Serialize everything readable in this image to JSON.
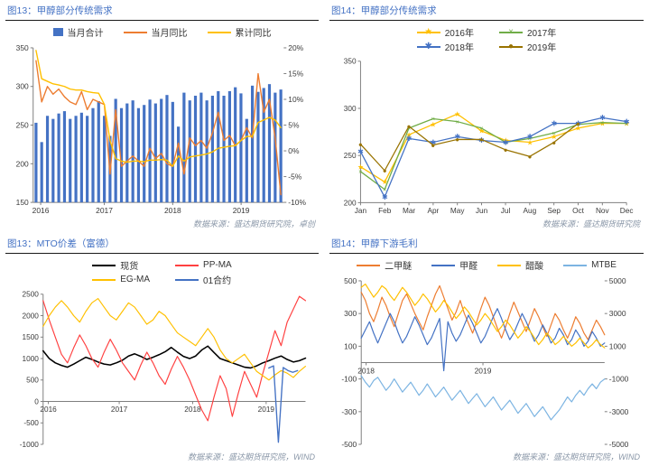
{
  "chart_data": [
    {
      "type": "bar",
      "title": "图13：甲醇部分传统需求",
      "source": "数据来源：盛达期货研究院，卓创",
      "legend_position": "top",
      "legend_columns": 1,
      "grid": false,
      "centered": true,
      "left_axis": {
        "min": 150,
        "max": 350,
        "ticks": [
          350,
          300,
          250,
          200,
          150
        ]
      },
      "right_axis": {
        "min": -10,
        "max": 20,
        "ticks": [
          20,
          15,
          10,
          5,
          0,
          -5,
          -10
        ],
        "suffix": "%"
      },
      "x_labels": [
        {
          "text": "2016",
          "pos": 0.03
        },
        {
          "text": "2017",
          "pos": 0.284
        },
        {
          "text": "2018",
          "pos": 0.557
        },
        {
          "text": "2019",
          "pos": 0.83
        }
      ],
      "series": [
        {
          "name": "当月合计",
          "type": "bar",
          "axis": "left",
          "color": "#4472C4",
          "values": [
            253,
            228,
            262,
            258,
            265,
            268,
            258,
            262,
            266,
            262,
            272,
            281,
            262,
            236,
            284,
            272,
            278,
            282,
            272,
            276,
            283,
            278,
            284,
            289,
            280,
            248,
            292,
            282,
            288,
            292,
            282,
            288,
            294,
            288,
            294,
            299,
            291,
            258,
            301,
            293,
            298,
            303,
            292,
            296
          ]
        },
        {
          "name": "当月同比",
          "type": "line",
          "axis": "right",
          "color": "#ED7D31",
          "width": 1.4,
          "values": [
            17.5,
            9.5,
            12.5,
            11,
            12,
            10.5,
            9.5,
            9,
            11.5,
            8,
            10,
            9.5,
            9,
            -4.5,
            8,
            -3,
            -2,
            -1,
            -2,
            -3,
            0.5,
            -1.5,
            -0.5,
            -2.5,
            -3,
            1.5,
            -4.5,
            2.5,
            1,
            2,
            0.5,
            3.5,
            7.5,
            2,
            3,
            1,
            2,
            4.5,
            2.5,
            15,
            7.5,
            10,
            2.5,
            -8.5
          ]
        },
        {
          "name": "累计同比",
          "type": "line",
          "axis": "right",
          "color": "#FFC000",
          "width": 1.4,
          "values": [
            19.5,
            14,
            13.5,
            13,
            12.8,
            12.5,
            12,
            11.8,
            11.8,
            11.5,
            11.3,
            11.2,
            9,
            2,
            -1.5,
            -2,
            -2.2,
            -2,
            -2,
            -2.1,
            -1.8,
            -1.8,
            -1.7,
            -1.8,
            -3,
            -1,
            -2,
            -1.2,
            -1,
            -0.8,
            -0.6,
            -0.2,
            0.5,
            0.7,
            0.9,
            1,
            2,
            2.8,
            2.8,
            5.5,
            6,
            6.5,
            6,
            4.5
          ]
        }
      ]
    },
    {
      "type": "line",
      "title": "图14：甲醇部分传统需求",
      "source": "数据来源：盛达期货研究院",
      "legend_position": "top",
      "legend_columns": 2,
      "grid": false,
      "centered": false,
      "left_axis": {
        "min": 200,
        "max": 350,
        "ticks": [
          350,
          300,
          250,
          200
        ]
      },
      "x_labels": [
        {
          "text": "Jan",
          "pos": 0
        },
        {
          "text": "Feb",
          "pos": 0.091
        },
        {
          "text": "Mar",
          "pos": 0.182
        },
        {
          "text": "Apr",
          "pos": 0.273
        },
        {
          "text": "May",
          "pos": 0.364
        },
        {
          "text": "Jun",
          "pos": 0.455
        },
        {
          "text": "Jul",
          "pos": 0.545
        },
        {
          "text": "Aug",
          "pos": 0.636
        },
        {
          "text": "Sep",
          "pos": 0.727
        },
        {
          "text": "Oct",
          "pos": 0.818
        },
        {
          "text": "Nov",
          "pos": 0.909
        },
        {
          "text": "Dec",
          "pos": 1
        }
      ],
      "series": [
        {
          "name": "2016年",
          "type": "line",
          "axis": "left",
          "color": "#FFC000",
          "marker": "★",
          "values": [
            238,
            222,
            272,
            283,
            294,
            276,
            266,
            264,
            270,
            279,
            284,
            284
          ]
        },
        {
          "name": "2017年",
          "type": "line",
          "axis": "left",
          "color": "#70AD47",
          "marker": "×",
          "values": [
            233,
            214,
            279,
            289,
            286,
            279,
            264,
            268,
            274,
            283,
            285,
            284
          ]
        },
        {
          "name": "2018年",
          "type": "line",
          "axis": "left",
          "color": "#4472C4",
          "marker": "✱",
          "values": [
            254,
            206,
            268,
            264,
            270,
            266,
            264,
            270,
            284,
            284,
            290,
            286
          ]
        },
        {
          "name": "2019年",
          "type": "line",
          "axis": "left",
          "color": "#997300",
          "marker": "●",
          "values": [
            262,
            234,
            281,
            261,
            267,
            267,
            256,
            249,
            264,
            284,
            null,
            null
          ]
        }
      ]
    },
    {
      "type": "line",
      "title": "图13：MTO价差（富德）",
      "source": "数据来源：盛达期货研究院，WIND",
      "legend_position": "top",
      "legend_columns": 2,
      "grid": false,
      "centered": false,
      "x_axis_at": 0,
      "left_axis": {
        "min": -1000,
        "max": 2500,
        "ticks": [
          2500,
          2000,
          1500,
          1000,
          500,
          0,
          -500,
          -1000
        ]
      },
      "x_labels": [
        {
          "text": "2016",
          "pos": 0.02
        },
        {
          "text": "2017",
          "pos": 0.29
        },
        {
          "text": "2018",
          "pos": 0.57
        },
        {
          "text": "2019",
          "pos": 0.85
        }
      ],
      "series": [
        {
          "name": "现货",
          "type": "line",
          "axis": "left",
          "color": "#000000",
          "width": 1.6,
          "values": [
            1180,
            1000,
            900,
            840,
            800,
            870,
            950,
            1030,
            980,
            920,
            870,
            850,
            900,
            960,
            1060,
            1110,
            1050,
            980,
            1030,
            1090,
            1160,
            1260,
            1150,
            1050,
            1000,
            1060,
            1200,
            1290,
            1140,
            1000,
            950,
            900,
            850,
            800,
            780,
            830,
            900,
            950,
            1010,
            1060,
            980,
            920,
            950,
            1010
          ]
        },
        {
          "name": "PP-MA",
          "type": "line",
          "axis": "left",
          "color": "#FF4040",
          "width": 1.2,
          "values": [
            2350,
            1900,
            1500,
            1100,
            900,
            1250,
            1550,
            1300,
            1000,
            800,
            1150,
            1450,
            1200,
            900,
            700,
            500,
            850,
            1150,
            900,
            600,
            400,
            750,
            1050,
            800,
            500,
            150,
            -200,
            -450,
            100,
            600,
            300,
            -350,
            200,
            700,
            400,
            100,
            650,
            1150,
            1650,
            1300,
            1850,
            2150,
            2450,
            2350
          ]
        },
        {
          "name": "EG-MA",
          "type": "line",
          "axis": "left",
          "color": "#FFC000",
          "width": 1.2,
          "values": [
            1750,
            2000,
            2200,
            2350,
            2200,
            2000,
            1850,
            2100,
            2300,
            2400,
            2200,
            2000,
            1900,
            2100,
            2300,
            2200,
            2000,
            1800,
            1900,
            2100,
            2000,
            1800,
            1600,
            1500,
            1400,
            1300,
            1500,
            1700,
            1500,
            1200,
            1000,
            900,
            1000,
            1100,
            900,
            700,
            600,
            500,
            620,
            720,
            660,
            560,
            700,
            820
          ]
        },
        {
          "name": "01合约",
          "type": "line",
          "axis": "left",
          "color": "#4472C4",
          "width": 1.4,
          "x0": 0.86,
          "x1": 0.97,
          "values": [
            780,
            830,
            -950,
            790,
            720,
            680,
            720
          ]
        }
      ]
    },
    {
      "type": "line",
      "title": "图14：甲醇下游毛利",
      "source": "数据来源：盛达期货研究院，WIND",
      "legend_position": "top",
      "legend_columns": 1,
      "grid": false,
      "centered": false,
      "x_axis_at": 0,
      "left_axis": {
        "min": -500,
        "max": 500,
        "ticks": [
          500,
          300,
          100,
          -100,
          -300,
          -500
        ]
      },
      "right_axis": {
        "min": -5000,
        "max": 5000,
        "ticks": [
          5000,
          3000,
          1000,
          -1000,
          -3000,
          -5000
        ]
      },
      "x_labels": [
        {
          "text": "2018",
          "pos": 0.02
        },
        {
          "text": "2019",
          "pos": 0.5
        }
      ],
      "series": [
        {
          "name": "二甲醚",
          "type": "line",
          "axis": "left",
          "color": "#ED7D31",
          "width": 1.2,
          "values": [
            430,
            380,
            300,
            250,
            320,
            400,
            350,
            280,
            220,
            300,
            380,
            420,
            360,
            300,
            250,
            200,
            280,
            350,
            420,
            470,
            400,
            330,
            260,
            310,
            380,
            300,
            240,
            180,
            250,
            330,
            400,
            350,
            280,
            210,
            150,
            220,
            300,
            370,
            310,
            250,
            190,
            260,
            330,
            280,
            220,
            160,
            230,
            300,
            260,
            200,
            150,
            210,
            280,
            240,
            180,
            140,
            200,
            260,
            220,
            170
          ]
        },
        {
          "name": "甲醛",
          "type": "line",
          "axis": "left",
          "color": "#4472C4",
          "width": 1.2,
          "values": [
            150,
            200,
            250,
            180,
            120,
            180,
            240,
            300,
            250,
            180,
            120,
            160,
            220,
            280,
            230,
            170,
            110,
            150,
            210,
            270,
            -50,
            250,
            180,
            130,
            170,
            230,
            290,
            240,
            180,
            120,
            160,
            220,
            280,
            330,
            270,
            200,
            140,
            180,
            240,
            300,
            250,
            190,
            130,
            170,
            230,
            180,
            120,
            150,
            210,
            170,
            110,
            140,
            200,
            160,
            100,
            130,
            190,
            150,
            100,
            120
          ]
        },
        {
          "name": "醋酸",
          "type": "line",
          "axis": "left",
          "color": "#FFC000",
          "width": 1.2,
          "values": [
            460,
            480,
            440,
            400,
            430,
            470,
            450,
            410,
            380,
            420,
            460,
            430,
            390,
            350,
            380,
            420,
            390,
            350,
            310,
            340,
            380,
            350,
            310,
            270,
            300,
            340,
            310,
            270,
            230,
            260,
            300,
            270,
            230,
            190,
            220,
            260,
            230,
            190,
            150,
            180,
            220,
            190,
            150,
            110,
            140,
            180,
            150,
            110,
            130,
            160,
            130,
            100,
            120,
            150,
            120,
            90,
            110,
            140,
            110,
            90
          ]
        },
        {
          "name": "MTBE",
          "type": "line",
          "axis": "right",
          "color": "#7CB4E2",
          "width": 1.2,
          "values": [
            -800,
            -1200,
            -1500,
            -1100,
            -900,
            -1300,
            -1700,
            -1400,
            -1000,
            -1400,
            -1800,
            -1500,
            -1200,
            -1600,
            -2000,
            -1700,
            -1300,
            -1700,
            -2100,
            -1800,
            -1500,
            -1900,
            -2300,
            -2000,
            -1700,
            -2100,
            -2500,
            -2200,
            -1900,
            -2300,
            -2700,
            -2400,
            -2100,
            -2500,
            -2900,
            -2600,
            -2300,
            -2700,
            -3100,
            -2800,
            -2500,
            -2900,
            -3300,
            -3000,
            -2700,
            -3100,
            -3500,
            -3200,
            -2900,
            -2500,
            -2100,
            -2400,
            -2000,
            -1700,
            -2000,
            -1600,
            -1300,
            -1600,
            -1200,
            -1000
          ]
        }
      ]
    }
  ]
}
